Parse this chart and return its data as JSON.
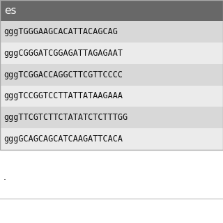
{
  "header_text": "es",
  "header_bg": "#686868",
  "header_text_color": "#ffffff",
  "rows": [
    "gggTGGGAAGCACATTACAGCAG",
    "gggCGGGATCGGAGATTAGAGAAT",
    "gggTCGGACCAGGCTTCGTTCCCC",
    "gggTCCGGTCCTTATTATAAGAAA",
    "gggTTCGTCTTCTATATCTCTTTGG",
    "gggGCAGCAGCATCAAGATTCACA"
  ],
  "row_bg_odd": "#ebebeb",
  "row_bg_even": "#d8d8d8",
  "footer_text": ".",
  "table_border_color": "#aaaaaa",
  "text_color": "#111111",
  "font_size": 8.5,
  "header_font_size": 11,
  "fig_bg": "#ffffff",
  "footer_line_color": "#bbbbbb"
}
